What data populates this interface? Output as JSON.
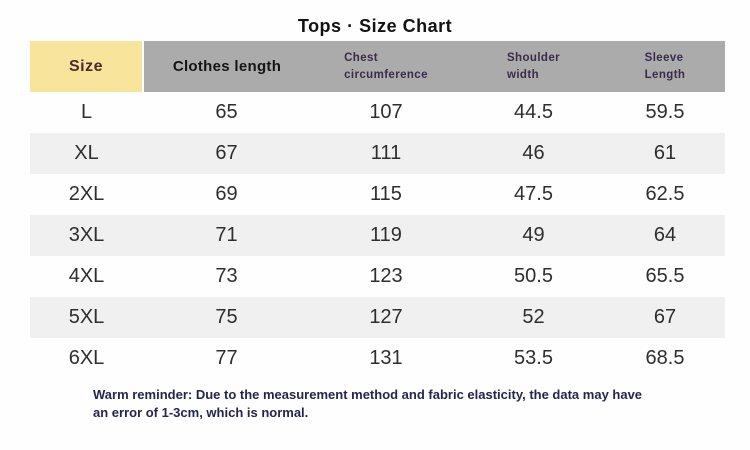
{
  "title": "Tops · Size Chart",
  "table": {
    "headers": [
      {
        "label": "Size"
      },
      {
        "label": "Clothes length"
      },
      {
        "label": "Chest\ncircumference"
      },
      {
        "label": "Shoulder\nwidth"
      },
      {
        "label": "Sleeve\nLength"
      }
    ],
    "rows": [
      {
        "size": "L",
        "clothes_length": "65",
        "chest_circumference": "107",
        "shoulder_width": "44.5",
        "sleeve_length": "59.5"
      },
      {
        "size": "XL",
        "clothes_length": "67",
        "chest_circumference": "111",
        "shoulder_width": "46",
        "sleeve_length": "61"
      },
      {
        "size": "2XL",
        "clothes_length": "69",
        "chest_circumference": "115",
        "shoulder_width": "47.5",
        "sleeve_length": "62.5"
      },
      {
        "size": "3XL",
        "clothes_length": "71",
        "chest_circumference": "119",
        "shoulder_width": "49",
        "sleeve_length": "64"
      },
      {
        "size": "4XL",
        "clothes_length": "73",
        "chest_circumference": "123",
        "shoulder_width": "50.5",
        "sleeve_length": "65.5"
      },
      {
        "size": "5XL",
        "clothes_length": "75",
        "chest_circumference": "127",
        "shoulder_width": "52",
        "sleeve_length": "67"
      },
      {
        "size": "6XL",
        "clothes_length": "77",
        "chest_circumference": "131",
        "shoulder_width": "53.5",
        "sleeve_length": "68.5"
      }
    ]
  },
  "reminder": "Warm reminder: Due to the measurement method and fabric elasticity, the data may have\nan error of 1-3cm, which is normal.",
  "colors": {
    "size_header_bg": "#f9e49c",
    "header_bg": "#ababab",
    "small_header_text": "#3b2b4e",
    "size_header_text": "#4c2a33",
    "stripe_bg": "#f0f0f0",
    "reminder_text": "#23274b"
  },
  "chart_data": {
    "type": "table",
    "title": "Tops · Size Chart",
    "columns": [
      "Size",
      "Clothes length",
      "Chest circumference",
      "Shoulder width",
      "Sleeve Length"
    ],
    "rows": [
      [
        "L",
        65,
        107,
        44.5,
        59.5
      ],
      [
        "XL",
        67,
        111,
        46,
        61
      ],
      [
        "2XL",
        69,
        115,
        47.5,
        62.5
      ],
      [
        "3XL",
        71,
        119,
        49,
        64
      ],
      [
        "4XL",
        73,
        123,
        50.5,
        65.5
      ],
      [
        "5XL",
        75,
        127,
        52,
        67
      ],
      [
        "6XL",
        77,
        131,
        53.5,
        68.5
      ]
    ],
    "note": "Warm reminder: Due to the measurement method and fabric elasticity, the data may have an error of 1-3cm, which is normal.",
    "layout_hints": {
      "striped_rows": "even rows (XL, 3XL, 5XL) shaded #f0f0f0",
      "header_style": "Size cell yellow, other headers gray"
    }
  }
}
